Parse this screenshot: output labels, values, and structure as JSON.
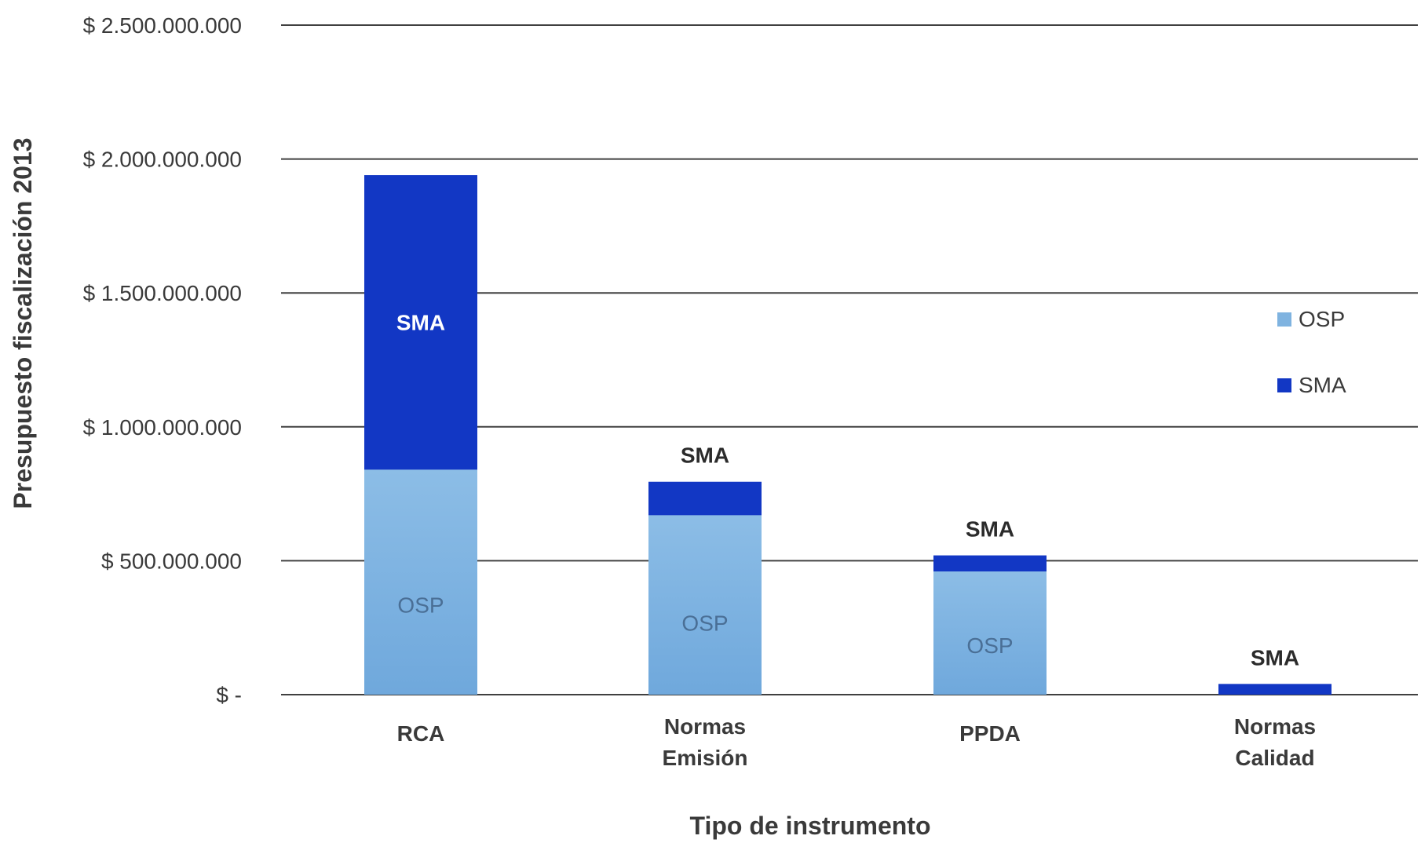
{
  "chart_data": {
    "type": "bar",
    "stacked": true,
    "categories": [
      [
        "RCA"
      ],
      [
        "Normas",
        "Emisión"
      ],
      [
        "PPDA"
      ],
      [
        "Normas",
        "Calidad"
      ]
    ],
    "series": [
      {
        "name": "OSP",
        "color": "#6fa8dc",
        "values": [
          840000000,
          670000000,
          460000000,
          0
        ]
      },
      {
        "name": "SMA",
        "color": "#1237c4",
        "values": [
          1100000000,
          125000000,
          60000000,
          40000000
        ]
      }
    ],
    "ylim": [
      0,
      2500000000
    ],
    "yticks": [
      0,
      500000000,
      1000000000,
      1500000000,
      2000000000,
      2500000000
    ],
    "ytick_labels": [
      "$ -",
      "$ 500.000.000",
      "$ 1.000.000.000",
      "$ 1.500.000.000",
      "$ 2.000.000.000",
      "$ 2.500.000.000"
    ],
    "xlabel": "Tipo de instrumento",
    "ylabel": "Presupuesto fiscalización 2013",
    "segment_labels": {
      "OSP": "OSP",
      "SMA": "SMA"
    },
    "legend": {
      "position": "right",
      "entries": [
        "OSP",
        "SMA"
      ]
    },
    "grid": true
  }
}
